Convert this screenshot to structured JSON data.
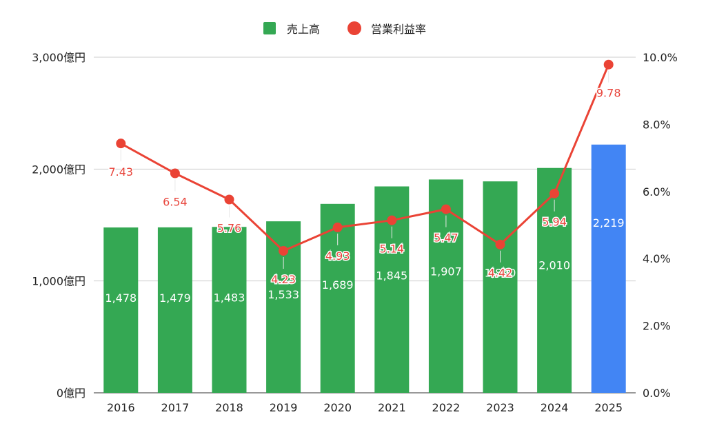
{
  "chart_data": {
    "type": "bar",
    "categories": [
      "2016",
      "2017",
      "2018",
      "2019",
      "2020",
      "2021",
      "2022",
      "2023",
      "2024",
      "2025"
    ],
    "series": [
      {
        "name": "売上高",
        "kind": "bar",
        "axis": "left",
        "values": [
          1478,
          1479,
          1483,
          1533,
          1689,
          1845,
          1907,
          1890,
          2010,
          2219
        ],
        "labels": [
          "1,478",
          "1,479",
          "1,483",
          "1,533",
          "1,689",
          "1,845",
          "1,907",
          "1,890",
          "2,010",
          "2,219"
        ],
        "color": "#34a853",
        "highlight_color": "#4285f4",
        "highlight_index": 9
      },
      {
        "name": "営業利益率",
        "kind": "line",
        "axis": "right",
        "values": [
          7.43,
          6.54,
          5.76,
          4.23,
          4.93,
          5.14,
          5.47,
          4.42,
          5.94,
          9.78
        ],
        "labels": [
          "7.43",
          "6.54",
          "5.76",
          "4.23",
          "4.93",
          "5.14",
          "5.47",
          "4.42",
          "5.94",
          "9.78"
        ],
        "color": "#ea4335"
      }
    ],
    "y_left": {
      "ylim": [
        0,
        3000
      ],
      "ticks": [
        0,
        1000,
        2000,
        3000
      ],
      "tick_labels": [
        "0億円",
        "1,000億円",
        "2,000億円",
        "3,000億円"
      ]
    },
    "y_right": {
      "ylim": [
        0,
        10
      ],
      "ticks": [
        0,
        2,
        4,
        6,
        8,
        10
      ],
      "tick_labels": [
        "0.0%",
        "2.0%",
        "4.0%",
        "6.0%",
        "8.0%",
        "10.0%"
      ]
    },
    "grid": true,
    "legend_position": "top-center",
    "title": "",
    "xlabel": "",
    "ylabel": ""
  }
}
